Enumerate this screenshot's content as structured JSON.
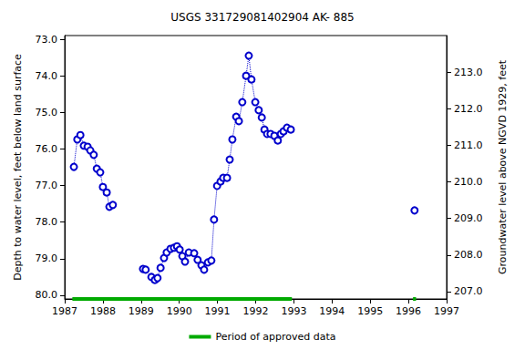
{
  "chart_data": {
    "type": "line",
    "title": "USGS 331729081402904 AK- 885",
    "x_label": "",
    "y_label": "Depth to water level, feet below land surface",
    "y2_label": "Groundwater level above NGVD 1929, feet",
    "xlim": [
      1987,
      1997
    ],
    "xticks": [
      1987,
      1988,
      1989,
      1990,
      1991,
      1992,
      1993,
      1994,
      1995,
      1996,
      1997
    ],
    "ylim": [
      72.9,
      80.1
    ],
    "yticks": [
      {
        "value": 73,
        "label": "73.0"
      },
      {
        "value": 74,
        "label": "74.0"
      },
      {
        "value": 75,
        "label": "75.0"
      },
      {
        "value": 76,
        "label": "76.0"
      },
      {
        "value": 77,
        "label": "77.0"
      },
      {
        "value": 78,
        "label": "78.0"
      },
      {
        "value": 79,
        "label": "79.0"
      },
      {
        "value": 80,
        "label": "80.0"
      }
    ],
    "y2lim": [
      206.8,
      214.0
    ],
    "y2ticks": [
      {
        "value": 207,
        "label": "207.0"
      },
      {
        "value": 208,
        "label": "208.0"
      },
      {
        "value": 209,
        "label": "209.0"
      },
      {
        "value": 210,
        "label": "210.0"
      },
      {
        "value": 211,
        "label": "211.0"
      },
      {
        "value": 212,
        "label": "212.0"
      },
      {
        "value": 213,
        "label": "213.0"
      }
    ],
    "grid": false,
    "legend": "bottom",
    "series": [
      {
        "color": "#0000cc",
        "marker": "circle-open",
        "line_style": "dotted",
        "x": [
          1987.24,
          1987.33,
          1987.41,
          1987.5,
          1987.6,
          1987.67,
          1987.76,
          1987.84,
          1987.93,
          1988.0,
          1988.1,
          1988.17,
          1988.26,
          null,
          1989.05,
          1989.12,
          1989.27,
          1989.36,
          1989.43,
          1989.51,
          1989.6,
          1989.67,
          1989.77,
          1989.86,
          1989.94,
          1990.01,
          1990.08,
          1990.15,
          1990.25,
          1990.39,
          1990.48,
          1990.58,
          1990.65,
          1990.75,
          1990.84,
          1990.91,
          1990.99,
          1991.08,
          1991.15,
          1991.25,
          1991.32,
          1991.39,
          1991.49,
          1991.56,
          1991.65,
          1991.75,
          1991.82,
          1991.89,
          1991.99,
          1992.08,
          1992.16,
          1992.23,
          1992.3,
          1992.39,
          1992.49,
          1992.58,
          1992.66,
          1992.73,
          1992.82,
          1992.92,
          null,
          1996.16
        ],
        "values": [
          76.49,
          75.74,
          75.62,
          75.91,
          75.94,
          76.04,
          76.16,
          76.54,
          76.64,
          77.04,
          77.19,
          77.58,
          77.53,
          null,
          79.28,
          79.3,
          79.5,
          79.58,
          79.53,
          79.25,
          78.98,
          78.83,
          78.73,
          78.7,
          78.66,
          78.75,
          78.93,
          79.08,
          78.83,
          78.85,
          79.03,
          79.18,
          79.3,
          79.1,
          79.05,
          77.93,
          77.01,
          76.89,
          76.79,
          76.79,
          76.29,
          75.74,
          75.12,
          75.24,
          74.72,
          74.0,
          73.45,
          74.1,
          74.72,
          74.94,
          75.14,
          75.47,
          75.59,
          75.59,
          75.64,
          75.77,
          75.59,
          75.52,
          75.42,
          75.47,
          null,
          77.68
        ]
      }
    ],
    "approved_periods": {
      "name": "Period of approved data",
      "color": "#00aa00",
      "ranges": [
        [
          1987.2,
          1992.95
        ],
        [
          1996.12,
          1996.2
        ]
      ]
    }
  }
}
